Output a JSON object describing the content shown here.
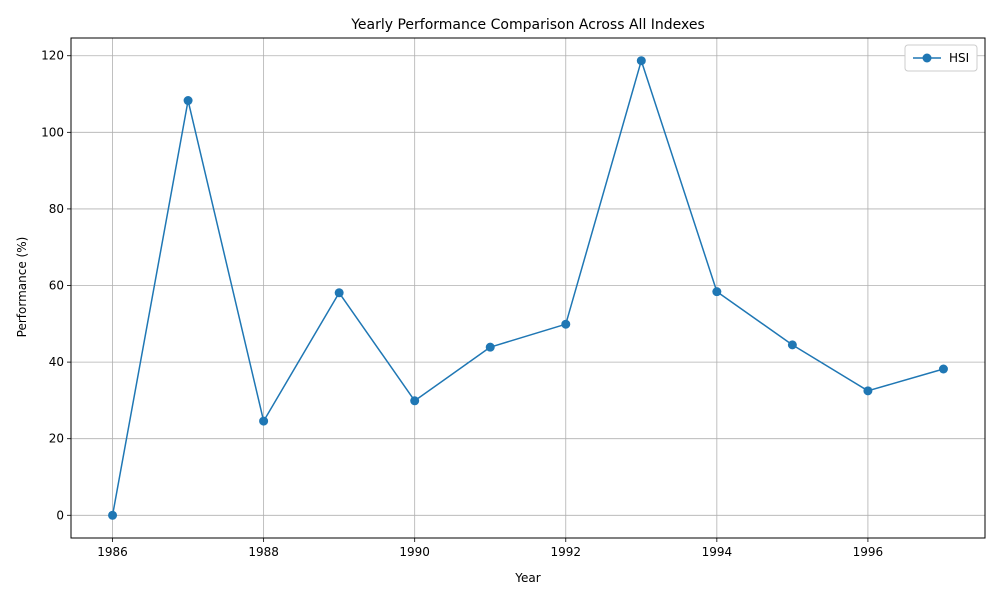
{
  "chart_data": {
    "type": "line",
    "title": "Yearly Performance Comparison Across All Indexes",
    "xlabel": "Year",
    "ylabel": "Performance (%)",
    "x": [
      1986,
      1987,
      1988,
      1989,
      1990,
      1991,
      1992,
      1993,
      1994,
      1995,
      1996,
      1997
    ],
    "series": [
      {
        "name": "HSI",
        "color": "#1f77b4",
        "marker": "circle",
        "values": [
          0,
          108.3,
          24.6,
          58.1,
          29.9,
          43.9,
          49.9,
          118.7,
          58.4,
          44.5,
          32.5,
          38.2
        ]
      }
    ],
    "xlim": [
      1985.45,
      1997.55
    ],
    "ylim": [
      -5.93,
      124.63
    ],
    "xticks": [
      "1986",
      "1988",
      "1990",
      "1992",
      "1994",
      "1996"
    ],
    "yticks": [
      "0",
      "20",
      "40",
      "60",
      "80",
      "100",
      "120"
    ],
    "grid": true,
    "legend_position": "top-right"
  }
}
